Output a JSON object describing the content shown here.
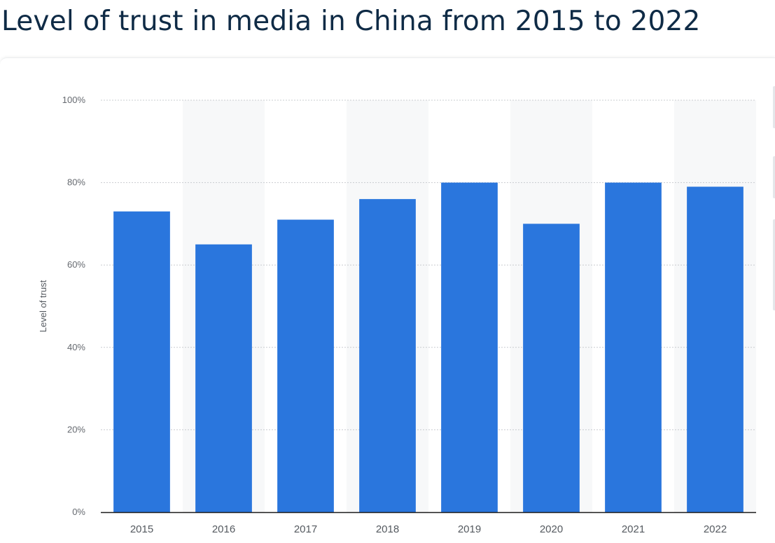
{
  "page": {
    "title": "Level of trust in media in China from 2015 to 2022"
  },
  "chart_data": {
    "type": "bar",
    "title": "Level of trust in media in China from 2015 to 2022",
    "xlabel": "",
    "ylabel": "Level of trust",
    "categories": [
      "2015",
      "2016",
      "2017",
      "2018",
      "2019",
      "2020",
      "2021",
      "2022"
    ],
    "values": [
      73,
      65,
      71,
      76,
      80,
      70,
      80,
      79
    ],
    "ylim": [
      0,
      100
    ],
    "y_ticks": [
      0,
      20,
      40,
      60,
      80,
      100
    ],
    "y_tick_labels": [
      "0%",
      "20%",
      "40%",
      "60%",
      "80%",
      "100%"
    ],
    "grid": true,
    "colors": {
      "bar": "#2a76dd",
      "band": "#f7f8f9",
      "grid": "#c9ccd0",
      "axis": "#1b1b1b"
    }
  }
}
